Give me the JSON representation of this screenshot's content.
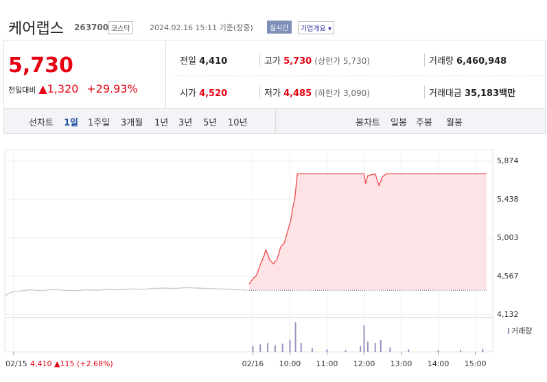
{
  "header": {
    "name": "케어랩스",
    "code": "263700",
    "market": "코스닥",
    "time": "2024.02.16 15:11 기준(장중)",
    "realtime": "실시간",
    "overview": "기업개요"
  },
  "quote": {
    "price": "5,730",
    "change_label": "전일대비",
    "change": "1,320",
    "percent": "+29.93%"
  },
  "stats": [
    {
      "label": "전일",
      "value": "4,410"
    },
    {
      "label": "고가",
      "value": "5,730",
      "note": "(상한가 5,730)"
    },
    {
      "label": "거래량",
      "value": "6,460,948"
    },
    {
      "label": "시가",
      "value": "4,520"
    },
    {
      "label": "저가",
      "value": "4,485",
      "note": "(하한가 3,090)"
    },
    {
      "label": "거래대금",
      "value": "35,183",
      "unit": "백만"
    }
  ],
  "tabs": {
    "line_label": "선차트",
    "line": [
      "1일",
      "1주일",
      "3개월",
      "1년",
      "3년",
      "5년",
      "10년"
    ],
    "candle_label": "봉차트",
    "candle": [
      "일봉",
      "주봉",
      "월봉"
    ]
  },
  "chart_data": {
    "type": "line",
    "xlim": [
      2.31,
      15.47
    ],
    "xticks": [
      {
        "value": 2.55,
        "label": "02/15"
      },
      {
        "value": 9.0,
        "label": "02/16"
      },
      {
        "value": 10.0,
        "label": "10:00"
      },
      {
        "value": 11.0,
        "label": "11:00"
      },
      {
        "value": 12.0,
        "label": "12:00"
      },
      {
        "value": 13.0,
        "label": "13:00"
      },
      {
        "value": 14.0,
        "label": "14:00"
      },
      {
        "value": 15.0,
        "label": "15:00"
      }
    ],
    "ylim": [
      4101,
      6006
    ],
    "yticks": [
      {
        "value": 4132,
        "label": "4,132"
      },
      {
        "value": 4567,
        "label": "4,567"
      },
      {
        "value": 5003,
        "label": "5,003"
      },
      {
        "value": 5438,
        "label": "5,438"
      },
      {
        "value": 5874,
        "label": "5,874"
      }
    ],
    "grid": true,
    "reference": 4410,
    "series": [
      {
        "color": "#c8c8c8",
        "x": [
          2.31,
          2.5,
          2.7,
          3.0,
          3.3,
          3.6,
          3.9,
          4.2,
          4.5,
          4.8,
          5.1,
          5.4,
          5.7,
          6.0,
          6.3,
          6.6,
          6.9,
          7.2,
          7.5,
          7.8,
          8.1,
          8.4,
          8.7,
          8.85
        ],
        "values": [
          4350,
          4390,
          4400,
          4415,
          4405,
          4420,
          4410,
          4405,
          4415,
          4410,
          4420,
          4415,
          4425,
          4420,
          4430,
          4435,
          4430,
          4440,
          4435,
          4430,
          4425,
          4420,
          4415,
          4410
        ]
      },
      {
        "color": "#f04848",
        "fill": "#fde3e5",
        "x": [
          8.9,
          9.0,
          9.1,
          9.2,
          9.3,
          9.35,
          9.45,
          9.55,
          9.65,
          9.75,
          9.85,
          9.95,
          10.02,
          10.08,
          10.13,
          10.2,
          11.0,
          12.0,
          12.04,
          12.1,
          12.3,
          12.4,
          12.5,
          12.6,
          13.0,
          14.0,
          15.3
        ],
        "values": [
          4480,
          4540,
          4580,
          4700,
          4800,
          4870,
          4760,
          4710,
          4760,
          4900,
          4950,
          5100,
          5200,
          5350,
          5450,
          5730,
          5730,
          5730,
          5620,
          5710,
          5730,
          5600,
          5700,
          5730,
          5730,
          5730,
          5730
        ]
      }
    ],
    "volume": {
      "name": "거래량",
      "color": "#9b8fbf",
      "ylim": [
        0,
        100
      ],
      "x": [
        9.0,
        9.2,
        9.4,
        9.6,
        9.8,
        10.0,
        10.15,
        10.3,
        10.6,
        11.0,
        11.5,
        11.9,
        12.0,
        12.1,
        12.3,
        12.45,
        12.7,
        13.2,
        14.0,
        14.6,
        15.2
      ],
      "values": [
        20,
        25,
        30,
        22,
        28,
        40,
        100,
        30,
        12,
        8,
        6,
        20,
        90,
        35,
        30,
        40,
        15,
        8,
        5,
        6,
        10
      ]
    },
    "summary": {
      "close": "4,410",
      "change": "▲115 (+2.68%)"
    }
  }
}
